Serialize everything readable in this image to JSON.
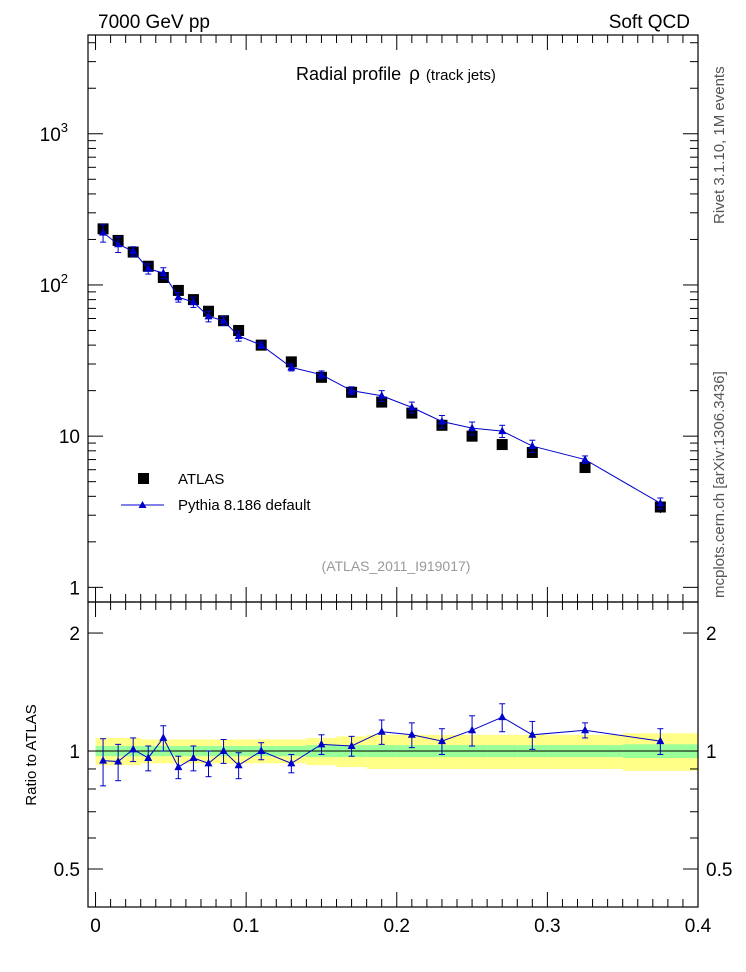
{
  "header": {
    "left_label": "7000 GeV pp",
    "right_label": "Soft QCD"
  },
  "side_labels": {
    "rivet": "Rivet 3.1.10,  1M events",
    "mcplots": "mcplots.cern.ch [arXiv:1306.3436]"
  },
  "chart_data": [
    {
      "type": "scatter",
      "panel": "main",
      "title": "Radial profile",
      "title_symbol": "ρ",
      "title_suffix": "(track jets)",
      "watermark": "(ATLAS_2011_I919017)",
      "xlim": [
        -0.005,
        0.4
      ],
      "ylim": [
        0.8,
        4500
      ],
      "yscale": "log",
      "y_ticks": [
        {
          "value": 1,
          "label": "1"
        },
        {
          "value": 10,
          "label": "10"
        },
        {
          "value": 100,
          "label": "10",
          "sup": "2"
        },
        {
          "value": 1000,
          "label": "10",
          "sup": "3"
        }
      ],
      "legend_placement": "bottom-left",
      "x": [
        0.005,
        0.015,
        0.025,
        0.035,
        0.045,
        0.055,
        0.065,
        0.075,
        0.085,
        0.095,
        0.11,
        0.13,
        0.15,
        0.17,
        0.19,
        0.21,
        0.23,
        0.25,
        0.27,
        0.29,
        0.325,
        0.375
      ],
      "series": [
        {
          "name": "ATLAS",
          "marker": "square",
          "color": "#000000",
          "values": [
            235,
            197,
            165,
            133,
            112,
            92,
            80,
            67,
            58,
            50,
            40,
            31,
            24.5,
            19.5,
            16.8,
            14.2,
            11.8,
            10,
            8.8,
            7.8,
            6.2,
            3.4
          ],
          "errors": [
            18,
            12,
            10,
            8,
            7,
            5,
            4.5,
            3.5,
            3,
            2.5,
            2,
            1.5,
            1.2,
            1,
            0.9,
            0.8,
            0.7,
            0.6,
            0.5,
            0.5,
            0.4,
            0.3
          ]
        },
        {
          "name": "Pythia 8.186 default",
          "marker": "triangle",
          "color": "#0000cc",
          "values": [
            222,
            186,
            167,
            128,
            120,
            83,
            77,
            62,
            58,
            46,
            40,
            28.5,
            25.5,
            20,
            18.5,
            15.5,
            12.5,
            11.3,
            10.8,
            8.6,
            7,
            3.6
          ],
          "errors": [
            30,
            22,
            12,
            10,
            10,
            6,
            6,
            5,
            4,
            3.5,
            2,
            1.5,
            1.5,
            1.2,
            1.5,
            1.3,
            1.2,
            1.1,
            1,
            0.8,
            0.4,
            0.3
          ]
        }
      ]
    },
    {
      "type": "scatter",
      "panel": "ratio",
      "ylabel": "Ratio to ATLAS",
      "xlim": [
        -0.005,
        0.4
      ],
      "ylim": [
        0.4,
        2.4
      ],
      "yscale": "log",
      "x_ticks": [
        {
          "value": 0,
          "label": "0"
        },
        {
          "value": 0.1,
          "label": "0.1"
        },
        {
          "value": 0.2,
          "label": "0.2"
        },
        {
          "value": 0.3,
          "label": "0.3"
        },
        {
          "value": 0.4,
          "label": "0.4"
        }
      ],
      "y_ticks": [
        {
          "value": 0.5,
          "label": "0.5"
        },
        {
          "value": 1,
          "label": "1"
        },
        {
          "value": 2,
          "label": "2"
        }
      ],
      "band_edges": [
        0,
        0.01,
        0.02,
        0.03,
        0.04,
        0.05,
        0.06,
        0.07,
        0.08,
        0.09,
        0.1,
        0.12,
        0.14,
        0.16,
        0.18,
        0.2,
        0.22,
        0.24,
        0.26,
        0.28,
        0.3,
        0.35,
        0.4
      ],
      "band_stat": [
        0.03,
        0.03,
        0.03,
        0.03,
        0.03,
        0.03,
        0.03,
        0.03,
        0.03,
        0.03,
        0.03,
        0.03,
        0.035,
        0.035,
        0.035,
        0.035,
        0.035,
        0.035,
        0.035,
        0.035,
        0.035,
        0.04
      ],
      "band_total": [
        0.08,
        0.08,
        0.08,
        0.07,
        0.07,
        0.07,
        0.07,
        0.07,
        0.07,
        0.07,
        0.07,
        0.07,
        0.08,
        0.09,
        0.1,
        0.1,
        0.1,
        0.1,
        0.1,
        0.1,
        0.1,
        0.11
      ],
      "x": [
        0.005,
        0.015,
        0.025,
        0.035,
        0.045,
        0.055,
        0.065,
        0.075,
        0.085,
        0.095,
        0.11,
        0.13,
        0.15,
        0.17,
        0.19,
        0.21,
        0.23,
        0.25,
        0.27,
        0.29,
        0.325,
        0.375
      ],
      "series": [
        {
          "name": "Pythia 8.186 default",
          "marker": "triangle",
          "color": "#0000cc",
          "values": [
            0.945,
            0.94,
            1.01,
            0.96,
            1.08,
            0.91,
            0.96,
            0.93,
            1.0,
            0.92,
            1.0,
            0.93,
            1.04,
            1.03,
            1.12,
            1.1,
            1.06,
            1.13,
            1.22,
            1.1,
            1.13,
            1.06
          ],
          "errors": [
            0.13,
            0.1,
            0.07,
            0.07,
            0.08,
            0.06,
            0.07,
            0.07,
            0.07,
            0.07,
            0.05,
            0.05,
            0.06,
            0.06,
            0.08,
            0.08,
            0.08,
            0.1,
            0.1,
            0.09,
            0.05,
            0.08
          ]
        }
      ]
    }
  ],
  "colors": {
    "band_stat": "#99ff99",
    "band_total": "#ffff88",
    "watermark": "#999999",
    "side_label": "#555555"
  }
}
